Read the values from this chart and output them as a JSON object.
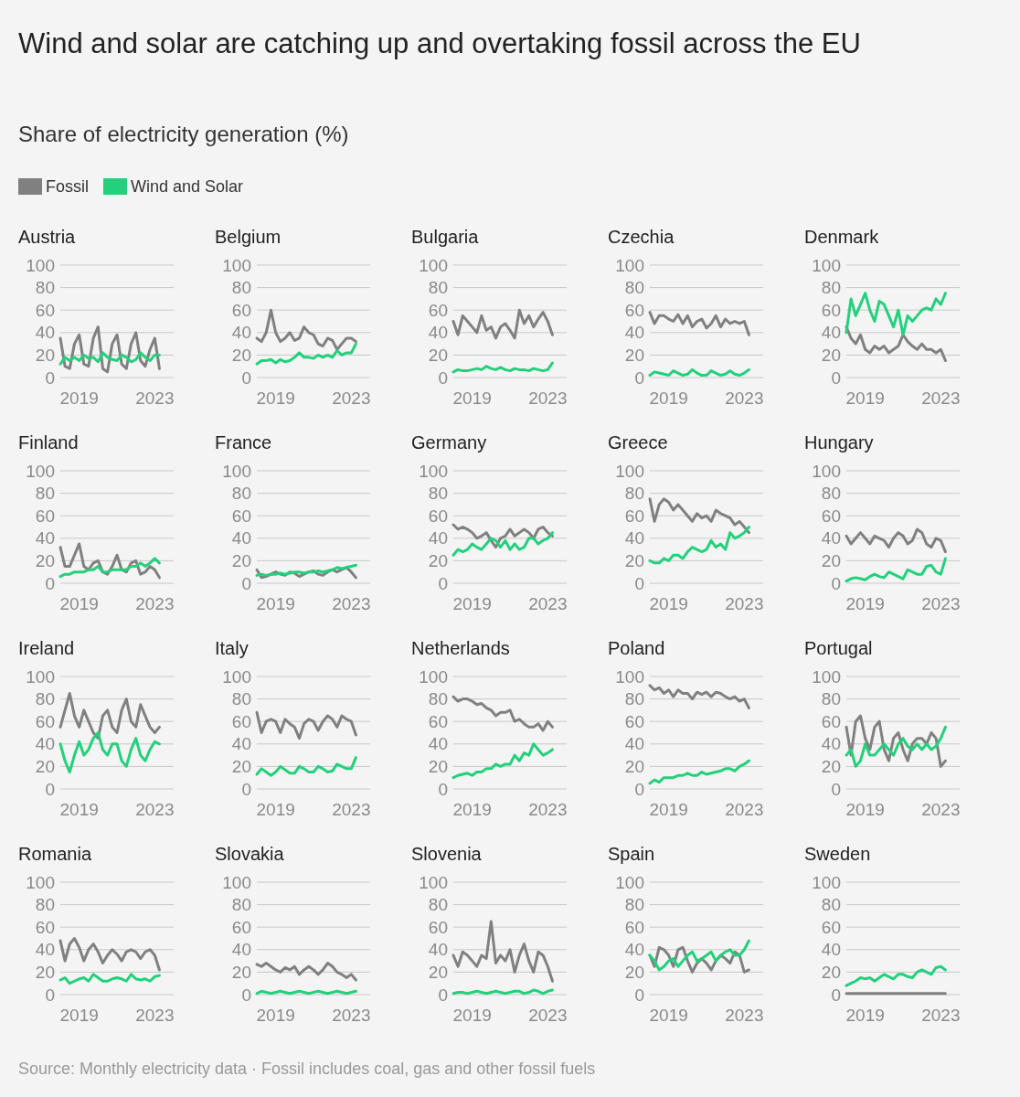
{
  "chart_data": [
    {
      "type": "other",
      "title": "Wind and solar are catching up and overtaking fossil across the EU",
      "subtitle": "Share of electricity generation (%)",
      "annotations": [
        "Source: Monthly electricity data · Fossil includes coal, gas and other fossil fuels"
      ]
    },
    {
      "type": "line",
      "title": "Austria",
      "legend": "top",
      "grid": "y",
      "xlim": [
        "2018-01",
        "2024-01"
      ],
      "xticks": [
        "2019",
        "2023"
      ],
      "ylim": [
        0,
        100
      ],
      "yticks": [
        0,
        20,
        40,
        60,
        80,
        100
      ],
      "x": [
        "2018-01",
        "2018-04",
        "2018-07",
        "2018-10",
        "2019-01",
        "2019-04",
        "2019-07",
        "2019-10",
        "2020-01",
        "2020-04",
        "2020-07",
        "2020-10",
        "2021-01",
        "2021-04",
        "2021-07",
        "2021-10",
        "2022-01",
        "2022-04",
        "2022-07",
        "2022-10",
        "2023-01",
        "2023-04"
      ],
      "series": [
        {
          "name": "Fossil",
          "color": "#808080",
          "values": [
            35,
            10,
            8,
            30,
            38,
            12,
            10,
            35,
            45,
            8,
            5,
            30,
            38,
            12,
            8,
            30,
            40,
            15,
            10,
            25,
            35,
            8
          ]
        },
        {
          "name": "Wind and Solar",
          "color": "#23d07c",
          "values": [
            12,
            18,
            15,
            18,
            15,
            20,
            17,
            18,
            14,
            22,
            18,
            16,
            15,
            20,
            18,
            14,
            16,
            22,
            18,
            15,
            20,
            20
          ]
        }
      ]
    },
    {
      "type": "line",
      "title": "Belgium",
      "grid": "y",
      "xlim": [
        "2018-01",
        "2024-01"
      ],
      "xticks": [
        "2019",
        "2023"
      ],
      "ylim": [
        0,
        100
      ],
      "yticks": [
        0,
        20,
        40,
        60,
        80,
        100
      ],
      "x": [
        "2018-01",
        "2018-04",
        "2018-07",
        "2018-10",
        "2019-01",
        "2019-04",
        "2019-07",
        "2019-10",
        "2020-01",
        "2020-04",
        "2020-07",
        "2020-10",
        "2021-01",
        "2021-04",
        "2021-07",
        "2021-10",
        "2022-01",
        "2022-04",
        "2022-07",
        "2022-10",
        "2023-01",
        "2023-04"
      ],
      "series": [
        {
          "color": "#808080",
          "values": [
            35,
            32,
            40,
            60,
            40,
            32,
            35,
            40,
            33,
            35,
            45,
            40,
            38,
            30,
            28,
            35,
            33,
            25,
            30,
            35,
            35,
            32
          ]
        },
        {
          "color": "#23d07c",
          "values": [
            12,
            15,
            15,
            16,
            13,
            16,
            14,
            15,
            18,
            22,
            18,
            18,
            17,
            20,
            18,
            20,
            18,
            24,
            20,
            22,
            22,
            30
          ]
        }
      ]
    },
    {
      "type": "line",
      "title": "Bulgaria",
      "grid": "y",
      "xlim": [
        "2018-01",
        "2024-01"
      ],
      "xticks": [
        "2019",
        "2023"
      ],
      "ylim": [
        0,
        100
      ],
      "yticks": [
        0,
        20,
        40,
        60,
        80,
        100
      ],
      "x": [
        "2018-01",
        "2018-04",
        "2018-07",
        "2018-10",
        "2019-01",
        "2019-04",
        "2019-07",
        "2019-10",
        "2020-01",
        "2020-04",
        "2020-07",
        "2020-10",
        "2021-01",
        "2021-04",
        "2021-07",
        "2021-10",
        "2022-01",
        "2022-04",
        "2022-07",
        "2022-10",
        "2023-01",
        "2023-04"
      ],
      "series": [
        {
          "color": "#808080",
          "values": [
            50,
            38,
            55,
            50,
            45,
            40,
            55,
            42,
            45,
            35,
            45,
            48,
            42,
            35,
            60,
            48,
            55,
            45,
            52,
            58,
            50,
            38
          ]
        },
        {
          "color": "#23d07c",
          "values": [
            5,
            7,
            6,
            6,
            7,
            8,
            7,
            10,
            8,
            7,
            9,
            7,
            6,
            8,
            7,
            7,
            6,
            8,
            7,
            6,
            7,
            13
          ]
        }
      ]
    },
    {
      "type": "line",
      "title": "Czechia",
      "grid": "y",
      "xlim": [
        "2018-01",
        "2024-01"
      ],
      "xticks": [
        "2019",
        "2023"
      ],
      "ylim": [
        0,
        100
      ],
      "yticks": [
        0,
        20,
        40,
        60,
        80,
        100
      ],
      "x": [
        "2018-01",
        "2018-04",
        "2018-07",
        "2018-10",
        "2019-01",
        "2019-04",
        "2019-07",
        "2019-10",
        "2020-01",
        "2020-04",
        "2020-07",
        "2020-10",
        "2021-01",
        "2021-04",
        "2021-07",
        "2021-10",
        "2022-01",
        "2022-04",
        "2022-07",
        "2022-10",
        "2023-01",
        "2023-04"
      ],
      "series": [
        {
          "color": "#808080",
          "values": [
            58,
            48,
            55,
            55,
            52,
            50,
            56,
            48,
            55,
            45,
            50,
            52,
            44,
            48,
            55,
            45,
            52,
            48,
            50,
            48,
            50,
            38
          ]
        },
        {
          "color": "#23d07c",
          "values": [
            2,
            5,
            4,
            3,
            2,
            6,
            4,
            2,
            3,
            7,
            4,
            2,
            2,
            6,
            4,
            2,
            3,
            6,
            3,
            2,
            4,
            7
          ]
        }
      ]
    },
    {
      "type": "line",
      "title": "Denmark",
      "grid": "y",
      "xlim": [
        "2018-01",
        "2024-01"
      ],
      "xticks": [
        "2019",
        "2023"
      ],
      "ylim": [
        0,
        100
      ],
      "yticks": [
        0,
        20,
        40,
        60,
        80,
        100
      ],
      "x": [
        "2018-01",
        "2018-04",
        "2018-07",
        "2018-10",
        "2019-01",
        "2019-04",
        "2019-07",
        "2019-10",
        "2020-01",
        "2020-04",
        "2020-07",
        "2020-10",
        "2021-01",
        "2021-04",
        "2021-07",
        "2021-10",
        "2022-01",
        "2022-04",
        "2022-07",
        "2022-10",
        "2023-01",
        "2023-04"
      ],
      "series": [
        {
          "color": "#808080",
          "values": [
            45,
            35,
            30,
            38,
            25,
            22,
            28,
            25,
            28,
            22,
            25,
            28,
            38,
            32,
            28,
            25,
            30,
            25,
            25,
            22,
            25,
            15
          ]
        },
        {
          "color": "#23d07c",
          "values": [
            40,
            70,
            55,
            65,
            75,
            60,
            50,
            68,
            65,
            55,
            45,
            60,
            38,
            55,
            50,
            55,
            60,
            62,
            60,
            70,
            65,
            75
          ]
        }
      ]
    },
    {
      "type": "line",
      "title": "Finland",
      "grid": "y",
      "xlim": [
        "2018-01",
        "2024-01"
      ],
      "xticks": [
        "2019",
        "2023"
      ],
      "ylim": [
        0,
        100
      ],
      "yticks": [
        0,
        20,
        40,
        60,
        80,
        100
      ],
      "x": [
        "2018-01",
        "2018-04",
        "2018-07",
        "2018-10",
        "2019-01",
        "2019-04",
        "2019-07",
        "2019-10",
        "2020-01",
        "2020-04",
        "2020-07",
        "2020-10",
        "2021-01",
        "2021-04",
        "2021-07",
        "2021-10",
        "2022-01",
        "2022-04",
        "2022-07",
        "2022-10",
        "2023-01",
        "2023-04"
      ],
      "series": [
        {
          "color": "#808080",
          "values": [
            32,
            15,
            15,
            25,
            35,
            15,
            12,
            18,
            20,
            10,
            8,
            15,
            25,
            12,
            10,
            18,
            20,
            8,
            10,
            15,
            12,
            5
          ]
        },
        {
          "color": "#23d07c",
          "values": [
            6,
            8,
            8,
            10,
            10,
            10,
            12,
            12,
            15,
            10,
            10,
            12,
            12,
            12,
            12,
            15,
            15,
            18,
            15,
            18,
            22,
            18
          ]
        }
      ]
    },
    {
      "type": "line",
      "title": "France",
      "grid": "y",
      "xlim": [
        "2018-01",
        "2024-01"
      ],
      "xticks": [
        "2019",
        "2023"
      ],
      "ylim": [
        0,
        100
      ],
      "yticks": [
        0,
        20,
        40,
        60,
        80,
        100
      ],
      "x": [
        "2018-01",
        "2018-04",
        "2018-07",
        "2018-10",
        "2019-01",
        "2019-04",
        "2019-07",
        "2019-10",
        "2020-01",
        "2020-04",
        "2020-07",
        "2020-10",
        "2021-01",
        "2021-04",
        "2021-07",
        "2021-10",
        "2022-01",
        "2022-04",
        "2022-07",
        "2022-10",
        "2023-01",
        "2023-04"
      ],
      "series": [
        {
          "color": "#808080",
          "values": [
            12,
            5,
            6,
            8,
            10,
            8,
            7,
            10,
            9,
            6,
            8,
            10,
            11,
            8,
            7,
            10,
            12,
            10,
            12,
            14,
            10,
            5
          ]
        },
        {
          "color": "#23d07c",
          "values": [
            7,
            8,
            7,
            8,
            8,
            9,
            8,
            9,
            10,
            10,
            9,
            10,
            10,
            11,
            10,
            11,
            12,
            14,
            13,
            14,
            15,
            16
          ]
        }
      ]
    },
    {
      "type": "line",
      "title": "Germany",
      "grid": "y",
      "xlim": [
        "2018-01",
        "2024-01"
      ],
      "xticks": [
        "2019",
        "2023"
      ],
      "ylim": [
        0,
        100
      ],
      "yticks": [
        0,
        20,
        40,
        60,
        80,
        100
      ],
      "x": [
        "2018-01",
        "2018-04",
        "2018-07",
        "2018-10",
        "2019-01",
        "2019-04",
        "2019-07",
        "2019-10",
        "2020-01",
        "2020-04",
        "2020-07",
        "2020-10",
        "2021-01",
        "2021-04",
        "2021-07",
        "2021-10",
        "2022-01",
        "2022-04",
        "2022-07",
        "2022-10",
        "2023-01",
        "2023-04"
      ],
      "series": [
        {
          "color": "#808080",
          "values": [
            52,
            48,
            50,
            48,
            45,
            40,
            42,
            45,
            38,
            32,
            40,
            42,
            48,
            42,
            45,
            48,
            45,
            40,
            48,
            50,
            45,
            42
          ]
        },
        {
          "color": "#23d07c",
          "values": [
            25,
            30,
            28,
            30,
            35,
            32,
            30,
            35,
            40,
            38,
            32,
            38,
            30,
            35,
            30,
            32,
            40,
            40,
            35,
            38,
            40,
            45
          ]
        }
      ]
    },
    {
      "type": "line",
      "title": "Greece",
      "grid": "y",
      "xlim": [
        "2018-01",
        "2024-01"
      ],
      "xticks": [
        "2019",
        "2023"
      ],
      "ylim": [
        0,
        100
      ],
      "yticks": [
        0,
        20,
        40,
        60,
        80,
        100
      ],
      "x": [
        "2018-01",
        "2018-04",
        "2018-07",
        "2018-10",
        "2019-01",
        "2019-04",
        "2019-07",
        "2019-10",
        "2020-01",
        "2020-04",
        "2020-07",
        "2020-10",
        "2021-01",
        "2021-04",
        "2021-07",
        "2021-10",
        "2022-01",
        "2022-04",
        "2022-07",
        "2022-10",
        "2023-01",
        "2023-04"
      ],
      "series": [
        {
          "color": "#808080",
          "values": [
            75,
            55,
            70,
            75,
            72,
            65,
            70,
            65,
            60,
            55,
            62,
            58,
            60,
            55,
            65,
            62,
            60,
            58,
            52,
            55,
            50,
            45
          ]
        },
        {
          "color": "#23d07c",
          "values": [
            20,
            18,
            18,
            22,
            20,
            25,
            25,
            22,
            28,
            32,
            30,
            28,
            30,
            38,
            32,
            35,
            30,
            45,
            40,
            42,
            45,
            50
          ]
        }
      ]
    },
    {
      "type": "line",
      "title": "Hungary",
      "grid": "y",
      "xlim": [
        "2018-01",
        "2024-01"
      ],
      "xticks": [
        "2019",
        "2023"
      ],
      "ylim": [
        0,
        100
      ],
      "yticks": [
        0,
        20,
        40,
        60,
        80,
        100
      ],
      "x": [
        "2018-01",
        "2018-04",
        "2018-07",
        "2018-10",
        "2019-01",
        "2019-04",
        "2019-07",
        "2019-10",
        "2020-01",
        "2020-04",
        "2020-07",
        "2020-10",
        "2021-01",
        "2021-04",
        "2021-07",
        "2021-10",
        "2022-01",
        "2022-04",
        "2022-07",
        "2022-10",
        "2023-01",
        "2023-04"
      ],
      "series": [
        {
          "color": "#808080",
          "values": [
            42,
            35,
            40,
            45,
            40,
            35,
            42,
            40,
            38,
            32,
            40,
            45,
            42,
            35,
            38,
            48,
            45,
            35,
            32,
            40,
            38,
            28
          ]
        },
        {
          "color": "#23d07c",
          "values": [
            2,
            4,
            5,
            4,
            3,
            6,
            8,
            6,
            5,
            10,
            8,
            6,
            4,
            12,
            10,
            8,
            8,
            15,
            16,
            10,
            8,
            22
          ]
        }
      ]
    },
    {
      "type": "line",
      "title": "Ireland",
      "grid": "y",
      "xlim": [
        "2018-01",
        "2024-01"
      ],
      "xticks": [
        "2019",
        "2023"
      ],
      "ylim": [
        0,
        100
      ],
      "yticks": [
        0,
        20,
        40,
        60,
        80,
        100
      ],
      "x": [
        "2018-01",
        "2018-04",
        "2018-07",
        "2018-10",
        "2019-01",
        "2019-04",
        "2019-07",
        "2019-10",
        "2020-01",
        "2020-04",
        "2020-07",
        "2020-10",
        "2021-01",
        "2021-04",
        "2021-07",
        "2021-10",
        "2022-01",
        "2022-04",
        "2022-07",
        "2022-10",
        "2023-01",
        "2023-04"
      ],
      "series": [
        {
          "color": "#808080",
          "values": [
            55,
            70,
            85,
            65,
            55,
            70,
            60,
            50,
            45,
            65,
            70,
            55,
            50,
            70,
            80,
            60,
            55,
            75,
            65,
            55,
            50,
            55
          ]
        },
        {
          "color": "#23d07c",
          "values": [
            40,
            25,
            15,
            30,
            42,
            30,
            35,
            45,
            50,
            35,
            30,
            40,
            40,
            25,
            20,
            35,
            45,
            30,
            25,
            35,
            42,
            40
          ]
        }
      ]
    },
    {
      "type": "line",
      "title": "Italy",
      "grid": "y",
      "xlim": [
        "2018-01",
        "2024-01"
      ],
      "xticks": [
        "2019",
        "2023"
      ],
      "ylim": [
        0,
        100
      ],
      "yticks": [
        0,
        20,
        40,
        60,
        80,
        100
      ],
      "x": [
        "2018-01",
        "2018-04",
        "2018-07",
        "2018-10",
        "2019-01",
        "2019-04",
        "2019-07",
        "2019-10",
        "2020-01",
        "2020-04",
        "2020-07",
        "2020-10",
        "2021-01",
        "2021-04",
        "2021-07",
        "2021-10",
        "2022-01",
        "2022-04",
        "2022-07",
        "2022-10",
        "2023-01",
        "2023-04"
      ],
      "series": [
        {
          "color": "#808080",
          "values": [
            68,
            50,
            60,
            62,
            60,
            50,
            62,
            58,
            55,
            45,
            58,
            62,
            60,
            52,
            60,
            65,
            62,
            55,
            65,
            62,
            60,
            48
          ]
        },
        {
          "color": "#23d07c",
          "values": [
            13,
            18,
            15,
            12,
            15,
            20,
            17,
            14,
            14,
            20,
            18,
            15,
            15,
            20,
            18,
            15,
            16,
            22,
            20,
            18,
            18,
            28
          ]
        }
      ]
    },
    {
      "type": "line",
      "title": "Netherlands",
      "grid": "y",
      "xlim": [
        "2018-01",
        "2024-01"
      ],
      "xticks": [
        "2019",
        "2023"
      ],
      "ylim": [
        0,
        100
      ],
      "yticks": [
        0,
        20,
        40,
        60,
        80,
        100
      ],
      "x": [
        "2018-01",
        "2018-04",
        "2018-07",
        "2018-10",
        "2019-01",
        "2019-04",
        "2019-07",
        "2019-10",
        "2020-01",
        "2020-04",
        "2020-07",
        "2020-10",
        "2021-01",
        "2021-04",
        "2021-07",
        "2021-10",
        "2022-01",
        "2022-04",
        "2022-07",
        "2022-10",
        "2023-01",
        "2023-04"
      ],
      "series": [
        {
          "color": "#808080",
          "values": [
            82,
            78,
            80,
            80,
            78,
            75,
            76,
            72,
            70,
            65,
            68,
            68,
            70,
            60,
            62,
            58,
            55,
            55,
            58,
            52,
            60,
            55
          ]
        },
        {
          "color": "#23d07c",
          "values": [
            10,
            12,
            13,
            14,
            12,
            15,
            15,
            18,
            18,
            22,
            20,
            22,
            22,
            30,
            25,
            32,
            30,
            40,
            35,
            30,
            32,
            35
          ]
        }
      ]
    },
    {
      "type": "line",
      "title": "Poland",
      "grid": "y",
      "xlim": [
        "2018-01",
        "2024-01"
      ],
      "xticks": [
        "2019",
        "2023"
      ],
      "ylim": [
        0,
        100
      ],
      "yticks": [
        0,
        20,
        40,
        60,
        80,
        100
      ],
      "x": [
        "2018-01",
        "2018-04",
        "2018-07",
        "2018-10",
        "2019-01",
        "2019-04",
        "2019-07",
        "2019-10",
        "2020-01",
        "2020-04",
        "2020-07",
        "2020-10",
        "2021-01",
        "2021-04",
        "2021-07",
        "2021-10",
        "2022-01",
        "2022-04",
        "2022-07",
        "2022-10",
        "2023-01",
        "2023-04"
      ],
      "series": [
        {
          "color": "#808080",
          "values": [
            92,
            88,
            90,
            85,
            88,
            82,
            88,
            85,
            85,
            80,
            86,
            84,
            86,
            82,
            86,
            85,
            82,
            80,
            82,
            78,
            80,
            72
          ]
        },
        {
          "color": "#23d07c",
          "values": [
            5,
            8,
            6,
            10,
            10,
            10,
            12,
            12,
            14,
            12,
            12,
            15,
            13,
            14,
            15,
            16,
            18,
            18,
            16,
            20,
            22,
            25
          ]
        }
      ]
    },
    {
      "type": "line",
      "title": "Portugal",
      "grid": "y",
      "xlim": [
        "2018-01",
        "2024-01"
      ],
      "xticks": [
        "2019",
        "2023"
      ],
      "ylim": [
        0,
        100
      ],
      "yticks": [
        0,
        20,
        40,
        60,
        80,
        100
      ],
      "x": [
        "2018-01",
        "2018-04",
        "2018-07",
        "2018-10",
        "2019-01",
        "2019-04",
        "2019-07",
        "2019-10",
        "2020-01",
        "2020-04",
        "2020-07",
        "2020-10",
        "2021-01",
        "2021-04",
        "2021-07",
        "2021-10",
        "2022-01",
        "2022-04",
        "2022-07",
        "2022-10",
        "2023-01",
        "2023-04"
      ],
      "series": [
        {
          "color": "#808080",
          "values": [
            55,
            30,
            60,
            65,
            45,
            35,
            55,
            60,
            35,
            25,
            45,
            50,
            35,
            25,
            40,
            45,
            45,
            40,
            50,
            45,
            20,
            25
          ]
        },
        {
          "color": "#23d07c",
          "values": [
            30,
            35,
            20,
            25,
            40,
            30,
            30,
            35,
            40,
            35,
            30,
            40,
            45,
            38,
            35,
            40,
            35,
            40,
            35,
            38,
            45,
            55
          ]
        }
      ]
    },
    {
      "type": "line",
      "title": "Romania",
      "grid": "y",
      "xlim": [
        "2018-01",
        "2024-01"
      ],
      "xticks": [
        "2019",
        "2023"
      ],
      "ylim": [
        0,
        100
      ],
      "yticks": [
        0,
        20,
        40,
        60,
        80,
        100
      ],
      "x": [
        "2018-01",
        "2018-04",
        "2018-07",
        "2018-10",
        "2019-01",
        "2019-04",
        "2019-07",
        "2019-10",
        "2020-01",
        "2020-04",
        "2020-07",
        "2020-10",
        "2021-01",
        "2021-04",
        "2021-07",
        "2021-10",
        "2022-01",
        "2022-04",
        "2022-07",
        "2022-10",
        "2023-01",
        "2023-04"
      ],
      "series": [
        {
          "color": "#808080",
          "values": [
            48,
            30,
            45,
            50,
            42,
            30,
            40,
            45,
            38,
            28,
            35,
            40,
            36,
            30,
            38,
            40,
            38,
            32,
            38,
            40,
            35,
            22
          ]
        },
        {
          "color": "#23d07c",
          "values": [
            13,
            15,
            10,
            12,
            14,
            15,
            12,
            18,
            15,
            12,
            12,
            14,
            15,
            14,
            12,
            18,
            14,
            13,
            14,
            12,
            16,
            17
          ]
        }
      ]
    },
    {
      "type": "line",
      "title": "Slovakia",
      "grid": "y",
      "xlim": [
        "2018-01",
        "2024-01"
      ],
      "xticks": [
        "2019",
        "2023"
      ],
      "ylim": [
        0,
        100
      ],
      "yticks": [
        0,
        20,
        40,
        60,
        80,
        100
      ],
      "x": [
        "2018-01",
        "2018-04",
        "2018-07",
        "2018-10",
        "2019-01",
        "2019-04",
        "2019-07",
        "2019-10",
        "2020-01",
        "2020-04",
        "2020-07",
        "2020-10",
        "2021-01",
        "2021-04",
        "2021-07",
        "2021-10",
        "2022-01",
        "2022-04",
        "2022-07",
        "2022-10",
        "2023-01",
        "2023-04"
      ],
      "series": [
        {
          "color": "#808080",
          "values": [
            27,
            25,
            28,
            25,
            22,
            20,
            24,
            22,
            25,
            18,
            22,
            25,
            22,
            18,
            22,
            28,
            25,
            20,
            18,
            15,
            18,
            13
          ]
        },
        {
          "color": "#23d07c",
          "values": [
            1,
            3,
            2,
            1,
            2,
            3,
            2,
            1,
            2,
            3,
            2,
            1,
            2,
            3,
            2,
            1,
            2,
            3,
            2,
            1,
            2,
            3
          ]
        }
      ]
    },
    {
      "type": "line",
      "title": "Slovenia",
      "grid": "y",
      "xlim": [
        "2018-01",
        "2024-01"
      ],
      "xticks": [
        "2019",
        "2023"
      ],
      "ylim": [
        0,
        100
      ],
      "yticks": [
        0,
        20,
        40,
        60,
        80,
        100
      ],
      "x": [
        "2018-01",
        "2018-04",
        "2018-07",
        "2018-10",
        "2019-01",
        "2019-04",
        "2019-07",
        "2019-10",
        "2020-01",
        "2020-04",
        "2020-07",
        "2020-10",
        "2021-01",
        "2021-04",
        "2021-07",
        "2021-10",
        "2022-01",
        "2022-04",
        "2022-07",
        "2022-10",
        "2023-01",
        "2023-04"
      ],
      "series": [
        {
          "color": "#808080",
          "values": [
            35,
            25,
            38,
            35,
            30,
            25,
            35,
            32,
            65,
            28,
            35,
            30,
            40,
            20,
            35,
            45,
            30,
            20,
            38,
            35,
            25,
            12
          ]
        },
        {
          "color": "#23d07c",
          "values": [
            1,
            2,
            2,
            1,
            2,
            3,
            2,
            1,
            2,
            3,
            2,
            1,
            2,
            3,
            3,
            1,
            2,
            4,
            3,
            1,
            3,
            4
          ]
        }
      ]
    },
    {
      "type": "line",
      "title": "Spain",
      "grid": "y",
      "xlim": [
        "2018-01",
        "2024-01"
      ],
      "xticks": [
        "2019",
        "2023"
      ],
      "ylim": [
        0,
        100
      ],
      "yticks": [
        0,
        20,
        40,
        60,
        80,
        100
      ],
      "x": [
        "2018-01",
        "2018-04",
        "2018-07",
        "2018-10",
        "2019-01",
        "2019-04",
        "2019-07",
        "2019-10",
        "2020-01",
        "2020-04",
        "2020-07",
        "2020-10",
        "2021-01",
        "2021-04",
        "2021-07",
        "2021-10",
        "2022-01",
        "2022-04",
        "2022-07",
        "2022-10",
        "2023-01",
        "2023-04"
      ],
      "series": [
        {
          "color": "#808080",
          "values": [
            35,
            25,
            42,
            40,
            35,
            25,
            40,
            42,
            30,
            20,
            28,
            32,
            28,
            22,
            30,
            35,
            32,
            28,
            38,
            35,
            20,
            22
          ]
        },
        {
          "color": "#23d07c",
          "values": [
            35,
            30,
            22,
            25,
            30,
            32,
            25,
            30,
            35,
            38,
            30,
            32,
            35,
            38,
            30,
            35,
            38,
            40,
            35,
            35,
            40,
            48
          ]
        }
      ]
    },
    {
      "type": "line",
      "title": "Sweden",
      "grid": "y",
      "xlim": [
        "2018-01",
        "2024-01"
      ],
      "xticks": [
        "2019",
        "2023"
      ],
      "ylim": [
        0,
        100
      ],
      "yticks": [
        0,
        20,
        40,
        60,
        80,
        100
      ],
      "x": [
        "2018-01",
        "2018-04",
        "2018-07",
        "2018-10",
        "2019-01",
        "2019-04",
        "2019-07",
        "2019-10",
        "2020-01",
        "2020-04",
        "2020-07",
        "2020-10",
        "2021-01",
        "2021-04",
        "2021-07",
        "2021-10",
        "2022-01",
        "2022-04",
        "2022-07",
        "2022-10",
        "2023-01",
        "2023-04"
      ],
      "series": [
        {
          "color": "#808080",
          "values": [
            1,
            1,
            1,
            1,
            1,
            1,
            1,
            1,
            1,
            1,
            1,
            1,
            1,
            1,
            1,
            1,
            1,
            1,
            1,
            1,
            1,
            1
          ]
        },
        {
          "color": "#23d07c",
          "values": [
            8,
            10,
            12,
            15,
            14,
            15,
            12,
            15,
            18,
            16,
            14,
            18,
            18,
            16,
            15,
            20,
            22,
            20,
            18,
            24,
            25,
            22
          ]
        }
      ]
    }
  ]
}
